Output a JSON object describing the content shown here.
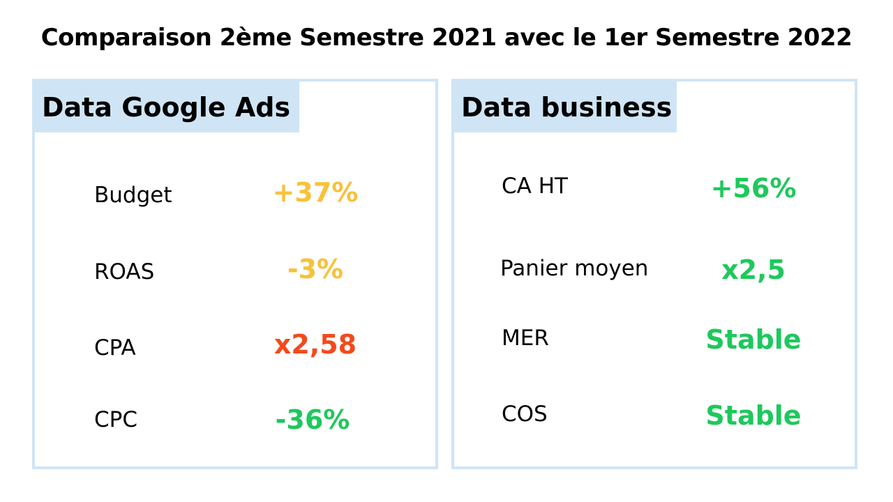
{
  "title": "Comparaison 2ème Semestre 2021 avec le 1er Semestre 2022",
  "colors": {
    "panel_border": "#cfe5f6",
    "header_bg": "#cfe5f6",
    "yellow": "#f8c13a",
    "red": "#f24a1d",
    "green": "#1ec85c"
  },
  "google_ads": {
    "header": "Data Google Ads",
    "rows": [
      {
        "label": "Budget",
        "value": "+37%",
        "color": "#f8c13a"
      },
      {
        "label": "ROAS",
        "value": "-3%",
        "color": "#f8c13a"
      },
      {
        "label": "CPA",
        "value": "x2,58",
        "color": "#f24a1d"
      },
      {
        "label": "CPC",
        "value": "-36%",
        "color": "#1ec85c"
      }
    ]
  },
  "business": {
    "header": "Data business",
    "rows": [
      {
        "label": "CA HT",
        "value": "+56%",
        "color": "#1ec85c"
      },
      {
        "label": "Panier moyen",
        "value": "x2,5",
        "color": "#1ec85c"
      },
      {
        "label": "MER",
        "value": "Stable",
        "color": "#1ec85c"
      },
      {
        "label": "COS",
        "value": "Stable",
        "color": "#1ec85c"
      }
    ]
  }
}
